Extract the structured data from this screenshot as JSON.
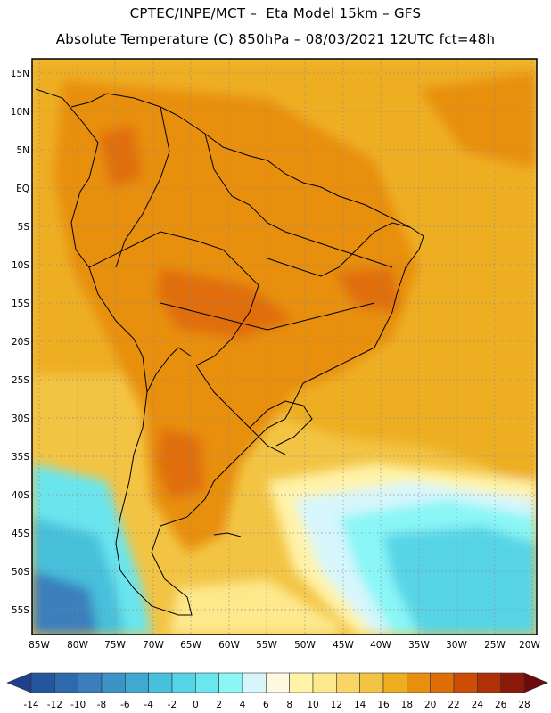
{
  "header": {
    "line1": "CPTEC/INPE/MCT –  Eta Model 15km – GFS",
    "line2": "Absolute Temperature (C) 850hPa – 08/03/2021 12UTC fct=48h"
  },
  "axes": {
    "lat_labels": [
      "15N",
      "10N",
      "5N",
      "EQ",
      "5S",
      "10S",
      "15S",
      "20S",
      "25S",
      "30S",
      "35S",
      "40S",
      "45S",
      "50S",
      "55S"
    ],
    "lon_labels": [
      "85W",
      "80W",
      "75W",
      "70W",
      "65W",
      "60W",
      "55W",
      "50W",
      "45W",
      "40W",
      "35W",
      "30W",
      "25W",
      "20W"
    ]
  },
  "colorbar": {
    "ticks": [
      "-14",
      "-12",
      "-10",
      "-8",
      "-6",
      "-4",
      "-2",
      "0",
      "2",
      "4",
      "6",
      "8",
      "10",
      "12",
      "14",
      "16",
      "18",
      "20",
      "22",
      "24",
      "26",
      "28"
    ],
    "colors": [
      "#1e3f8c",
      "#23569c",
      "#2c6aac",
      "#3a7fbc",
      "#3c93c8",
      "#3fa9d2",
      "#47c0dc",
      "#56d4e6",
      "#6be5ee",
      "#8af6f6",
      "#d6f6fc",
      "#fff8e0",
      "#fff3a8",
      "#fde88c",
      "#f9d466",
      "#f3c444",
      "#eeae22",
      "#e88f10",
      "#e06e08",
      "#cc4e06",
      "#b03008",
      "#8c1a0a",
      "#6e0a0a"
    ]
  }
}
